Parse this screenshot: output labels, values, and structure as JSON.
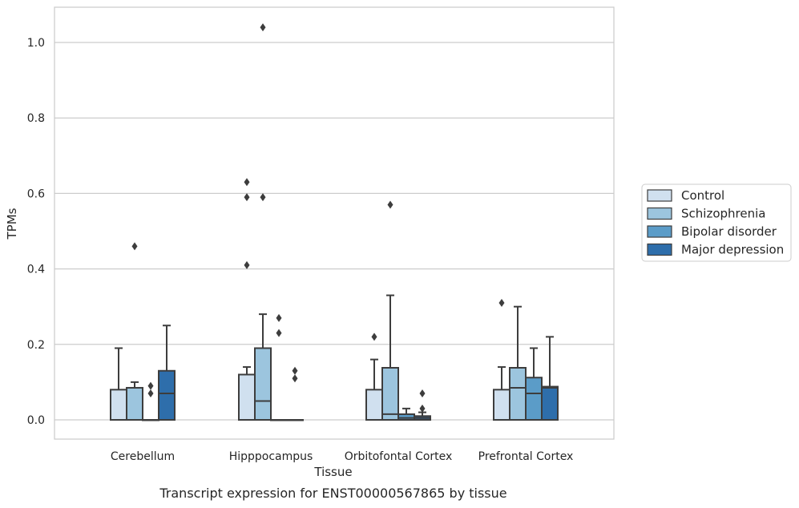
{
  "chart_data": {
    "type": "box",
    "caption": "Transcript expression for ENST00000567865 by tissue",
    "xlabel": "Tissue",
    "ylabel": "TPMs",
    "ylim": [
      -0.05,
      1.09
    ],
    "yticks": [
      0.0,
      0.2,
      0.4,
      0.6,
      0.8,
      1.0
    ],
    "ytick_labels": [
      "0.0",
      "0.2",
      "0.4",
      "0.6",
      "0.8",
      "1.0"
    ],
    "grid": "horizontal",
    "legend_position": "right",
    "categories": [
      "Cerebellum",
      "Hipppocampus",
      "Orbitofontal Cortex",
      "Prefrontal Cortex"
    ],
    "series": [
      {
        "name": "Control",
        "color": "#d0e0ef",
        "boxes": [
          {
            "q1": 0.0,
            "median": 0.0,
            "q3": 0.08,
            "whisker_low": 0.0,
            "whisker_high": 0.19,
            "outliers": []
          },
          {
            "q1": 0.0,
            "median": 0.0,
            "q3": 0.12,
            "whisker_low": 0.0,
            "whisker_high": 0.14,
            "outliers": [
              0.41,
              0.59,
              0.63
            ]
          },
          {
            "q1": 0.0,
            "median": 0.0,
            "q3": 0.08,
            "whisker_low": 0.0,
            "whisker_high": 0.16,
            "outliers": [
              0.22
            ]
          },
          {
            "q1": 0.0,
            "median": 0.0,
            "q3": 0.08,
            "whisker_low": 0.0,
            "whisker_high": 0.14,
            "outliers": [
              0.31
            ]
          }
        ]
      },
      {
        "name": "Schizophrenia",
        "color": "#9cc5de",
        "boxes": [
          {
            "q1": 0.0,
            "median": 0.0,
            "q3": 0.085,
            "whisker_low": 0.0,
            "whisker_high": 0.1,
            "outliers": [
              0.46
            ]
          },
          {
            "q1": 0.0,
            "median": 0.05,
            "q3": 0.19,
            "whisker_low": 0.0,
            "whisker_high": 0.28,
            "outliers": [
              0.59,
              1.04
            ]
          },
          {
            "q1": 0.0,
            "median": 0.015,
            "q3": 0.138,
            "whisker_low": 0.0,
            "whisker_high": 0.33,
            "outliers": [
              0.57
            ]
          },
          {
            "q1": 0.0,
            "median": 0.085,
            "q3": 0.138,
            "whisker_low": 0.0,
            "whisker_high": 0.3,
            "outliers": []
          }
        ]
      },
      {
        "name": "Bipolar disorder",
        "color": "#5b9cc8",
        "boxes": [
          {
            "q1": 0.0,
            "median": 0.0,
            "q3": 0.0,
            "whisker_low": 0.0,
            "whisker_high": 0.0,
            "outliers": [
              0.07,
              0.09
            ]
          },
          {
            "q1": 0.0,
            "median": 0.0,
            "q3": 0.0,
            "whisker_low": 0.0,
            "whisker_high": 0.0,
            "outliers": [
              0.23,
              0.27
            ]
          },
          {
            "q1": 0.0,
            "median": 0.005,
            "q3": 0.015,
            "whisker_low": 0.0,
            "whisker_high": 0.03,
            "outliers": []
          },
          {
            "q1": 0.0,
            "median": 0.07,
            "q3": 0.112,
            "whisker_low": 0.0,
            "whisker_high": 0.19,
            "outliers": []
          }
        ]
      },
      {
        "name": "Major depression",
        "color": "#2e6eab",
        "boxes": [
          {
            "q1": 0.0,
            "median": 0.07,
            "q3": 0.13,
            "whisker_low": 0.0,
            "whisker_high": 0.25,
            "outliers": []
          },
          {
            "q1": 0.0,
            "median": 0.0,
            "q3": 0.0,
            "whisker_low": 0.0,
            "whisker_high": 0.0,
            "outliers": [
              0.11,
              0.13
            ]
          },
          {
            "q1": 0.0,
            "median": 0.005,
            "q3": 0.01,
            "whisker_low": 0.0,
            "whisker_high": 0.02,
            "outliers": [
              0.03,
              0.07
            ]
          },
          {
            "q1": 0.0,
            "median": 0.085,
            "q3": 0.088,
            "whisker_low": 0.0,
            "whisker_high": 0.22,
            "outliers": []
          }
        ]
      }
    ]
  }
}
